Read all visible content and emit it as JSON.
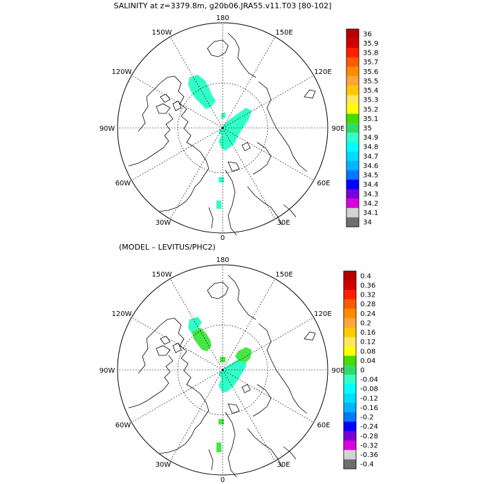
{
  "panels": [
    {
      "title": "SALINITY at z=3379.8m, g20b06.JRA55.v11.T03 [80-102]",
      "map_labels": {
        "lon_180": "180",
        "lon_150w": "150W",
        "lon_150e": "150E",
        "lon_120w": "120W",
        "lon_120e": "120E",
        "lon_90w": "90W",
        "lon_90e": "90E",
        "lon_60w": "60W",
        "lon_60e": "60E",
        "lon_30w": "30W",
        "lon_30e": "30E",
        "lon_0": "0"
      },
      "colorbar": {
        "labels": [
          "36",
          "35.9",
          "35.8",
          "35.7",
          "35.6",
          "35.5",
          "35.4",
          "35.3",
          "35.2",
          "35.1",
          "35",
          "34.9",
          "34.8",
          "34.7",
          "34.6",
          "34.5",
          "34.4",
          "34.3",
          "34.2",
          "34.1",
          "34"
        ],
        "colors": [
          "#b40000",
          "#d20000",
          "#ff1e00",
          "#ff5a00",
          "#ff8c00",
          "#ffa53c",
          "#ffc800",
          "#ffe65a",
          "#ffff00",
          "#46dc00",
          "#32dc64",
          "#32ffc8",
          "#00ffff",
          "#00dcff",
          "#00b4ff",
          "#0078ff",
          "#0000ff",
          "#7800dc",
          "#dc00dc",
          "#d2d2d2",
          "#6e6e6e"
        ]
      }
    },
    {
      "title": "(MODEL – LEVITUS/PHC2)",
      "map_labels": {
        "lon_180": "180",
        "lon_150w": "150W",
        "lon_150e": "150E",
        "lon_120w": "120W",
        "lon_120e": "120E",
        "lon_90w": "90W",
        "lon_90e": "90E",
        "lon_60w": "60W",
        "lon_60e": "60E",
        "lon_30w": "30W",
        "lon_30e": "30E",
        "lon_0": "0"
      },
      "colorbar": {
        "labels": [
          "0.4",
          "0.36",
          "0.32",
          "0.28",
          "0.24",
          "0.2",
          "0.16",
          "0.12",
          "0.08",
          "0.04",
          "0",
          "-0.04",
          "-0.08",
          "-0.12",
          "-0.16",
          "-0.2",
          "-0.24",
          "-0.28",
          "-0.32",
          "-0.36",
          "-0.4"
        ],
        "colors": [
          "#b40000",
          "#d20000",
          "#ff1e00",
          "#ff5a00",
          "#ff8c00",
          "#ffa53c",
          "#ffc800",
          "#ffe65a",
          "#ffff00",
          "#46dc00",
          "#32dc64",
          "#32ffc8",
          "#00ffff",
          "#00dcff",
          "#00b4ff",
          "#0078ff",
          "#0000ff",
          "#7800dc",
          "#dc00dc",
          "#d2d2d2",
          "#6e6e6e"
        ]
      }
    }
  ],
  "colors": {
    "field_cyan": "#32ffc8",
    "field_green": "#46e646",
    "coast": "#000000",
    "grid": "#000000"
  }
}
